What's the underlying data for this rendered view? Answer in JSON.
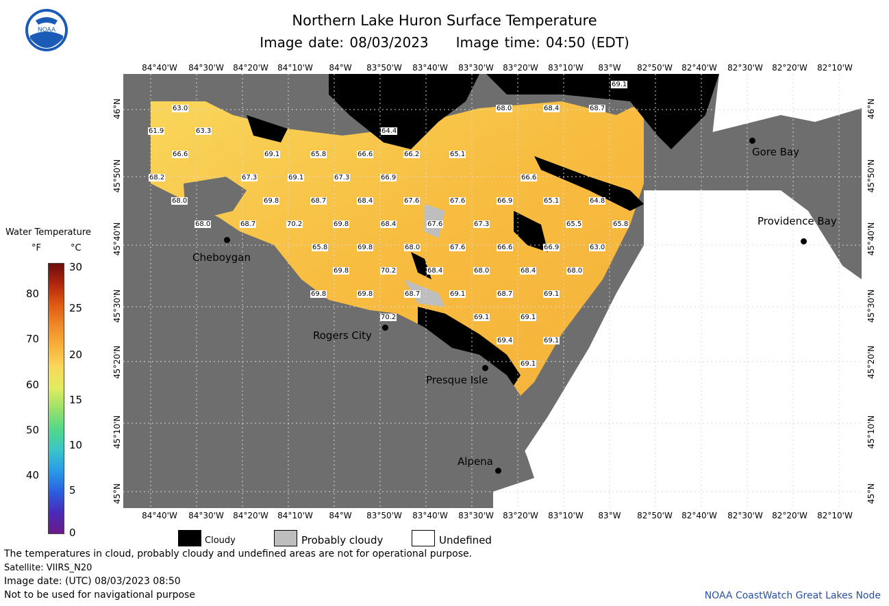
{
  "header": {
    "title": "Northern Lake Huron Surface Temperature",
    "image_date": "Image date: 08/03/2023",
    "image_time": "Image time: 04:50 (EDT)"
  },
  "axes": {
    "longitudes": [
      "84°40'W",
      "84°30'W",
      "84°20'W",
      "84°10'W",
      "84°W",
      "83°50'W",
      "83°40'W",
      "83°30'W",
      "83°20'W",
      "83°10'W",
      "83°W",
      "82°50'W",
      "82°40'W",
      "82°30'W",
      "82°20'W",
      "82°10'W"
    ],
    "latitudes": [
      "46°N",
      "45°50'N",
      "45°40'N",
      "45°30'N",
      "45°20'N",
      "45°10'N",
      "45°N"
    ]
  },
  "legend": {
    "title": "Water Temperature",
    "unit_f": "°F",
    "unit_c": "°C",
    "f_ticks": [
      "80",
      "70",
      "60",
      "50",
      "40"
    ],
    "c_ticks": [
      "30",
      "25",
      "20",
      "15",
      "10",
      "5",
      "0"
    ],
    "scale_colors": [
      "#6a0e0e",
      "#b3260e",
      "#e05a12",
      "#f08a2a",
      "#f7b23a",
      "#f9d85a",
      "#e2ec60",
      "#9ae06a",
      "#52d88a",
      "#3ac4c8",
      "#2a9ae8",
      "#2a5ee0",
      "#4a2ab8",
      "#6a1a8a"
    ]
  },
  "key": {
    "cloudy": "Cloudy",
    "probably_cloudy": "Probably cloudy",
    "undefined": "Undefined",
    "colors": {
      "cloudy": "#000000",
      "probably_cloudy": "#bebebe",
      "undefined": "#ffffff",
      "land": "#6e6e6e",
      "water": "#f8c04a"
    }
  },
  "cities": {
    "cheboygan": "Cheboygan",
    "rogers_city": "Rogers City",
    "presque_isle": "Presque Isle",
    "alpena": "Alpena",
    "gore_bay": "Gore Bay",
    "providence_bay": "Providence Bay"
  },
  "readings": [
    "63.0",
    "61.9",
    "63.3",
    "66.6",
    "68.2",
    "69.1",
    "65.8",
    "66.6",
    "64.4",
    "66.2",
    "65.1",
    "68.0",
    "68.4",
    "68.7",
    "69.1",
    "67.3",
    "69.1",
    "67.3",
    "66.9",
    "66.6",
    "68.0",
    "69.8",
    "68.7",
    "68.4",
    "67.6",
    "67.6",
    "66.9",
    "65.1",
    "64.8",
    "68.0",
    "68.7",
    "70.2",
    "69.8",
    "68.4",
    "67.6",
    "67.3",
    "65.5",
    "65.8",
    "65.8",
    "69.8",
    "68.0",
    "67.6",
    "66.6",
    "66.9",
    "63.0",
    "69.8",
    "70.2",
    "68.4",
    "68.0",
    "68.4",
    "68.0",
    "69.8",
    "69.8",
    "68.7",
    "69.1",
    "68.7",
    "69.1",
    "70.2",
    "69.1",
    "69.1",
    "69.4",
    "69.1",
    "69.1"
  ],
  "footer": {
    "disclaimer": "The temperatures in cloud, probably cloudy and undefined areas are not for operational purpose.",
    "satellite": "Satellite: VIIRS_N20",
    "utc_date": "Image date: (UTC) 08/03/2023  08:50",
    "nav_warning": "Not to be used for navigational purpose",
    "credit": "NOAA CoastWatch Great Lakes Node"
  }
}
